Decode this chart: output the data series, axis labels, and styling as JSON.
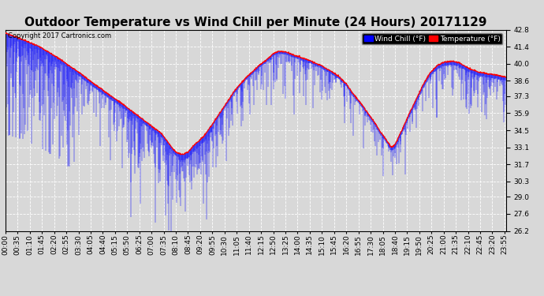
{
  "title": "Outdoor Temperature vs Wind Chill per Minute (24 Hours) 20171129",
  "copyright": "Copyright 2017 Cartronics.com",
  "legend_wind_chill": "Wind Chill (°F)",
  "legend_temperature": "Temperature (°F)",
  "ylim": [
    26.2,
    42.8
  ],
  "yticks": [
    26.2,
    27.6,
    29.0,
    30.3,
    31.7,
    33.1,
    34.5,
    35.9,
    37.3,
    38.6,
    40.0,
    41.4,
    42.8
  ],
  "bg_color": "#d8d8d8",
  "plot_bg_color": "#d8d8d8",
  "grid_color": "#ffffff",
  "temp_color": "#ff0000",
  "wind_color": "#0000ff",
  "title_fontsize": 11,
  "tick_fontsize": 6.5,
  "num_minutes": 1440,
  "xtick_step": 35,
  "figwidth": 6.9,
  "figheight": 3.75,
  "dpi": 100
}
